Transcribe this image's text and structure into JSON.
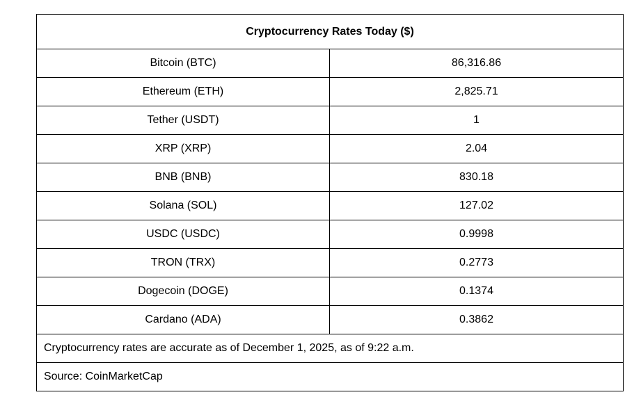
{
  "table": {
    "title": "Cryptocurrency Rates Today ($)",
    "rows": [
      {
        "name": "Bitcoin (BTC)",
        "value": "86,316.86"
      },
      {
        "name": "Ethereum (ETH)",
        "value": "2,825.71"
      },
      {
        "name": "Tether (USDT)",
        "value": "1"
      },
      {
        "name": "XRP (XRP)",
        "value": "2.04"
      },
      {
        "name": "BNB (BNB)",
        "value": "830.18"
      },
      {
        "name": "Solana (SOL)",
        "value": "127.02"
      },
      {
        "name": "USDC (USDC)",
        "value": "0.9998"
      },
      {
        "name": "TRON (TRX)",
        "value": "0.2773"
      },
      {
        "name": "Dogecoin (DOGE)",
        "value": "0.1374"
      },
      {
        "name": "Cardano (ADA)",
        "value": "0.3862"
      }
    ],
    "note": "Cryptocurrency rates are accurate as of December 1, 2025, as of 9:22 a.m.",
    "source": "Source: CoinMarketCap"
  }
}
